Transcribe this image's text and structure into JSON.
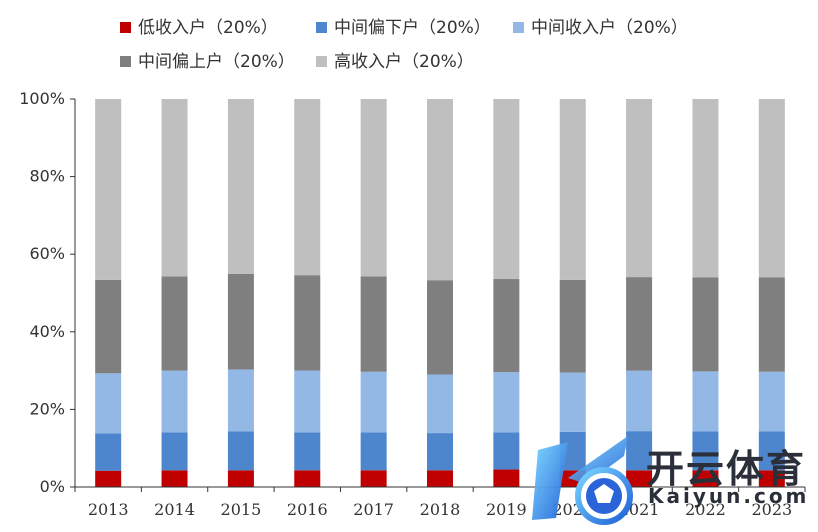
{
  "chart_data": {
    "type": "bar",
    "stacked": true,
    "categories": [
      "2013",
      "2014",
      "2015",
      "2016",
      "2017",
      "2018",
      "2019",
      "2020",
      "2021",
      "2022",
      "2023"
    ],
    "series": [
      {
        "name": "低收入户（20%）",
        "color": "#c00000",
        "values": [
          4.2,
          4.3,
          4.3,
          4.3,
          4.3,
          4.3,
          4.5,
          4.3,
          4.3,
          4.3,
          4.3
        ]
      },
      {
        "name": "中间偏下户（20%）",
        "color": "#4d86cc",
        "values": [
          9.6,
          9.8,
          10.0,
          9.8,
          9.8,
          9.6,
          9.6,
          9.9,
          10.1,
          10.0,
          10.0
        ]
      },
      {
        "name": "中间收入户（20%）",
        "color": "#93b8e6",
        "values": [
          15.5,
          15.9,
          16.0,
          15.9,
          15.6,
          15.1,
          15.5,
          15.3,
          15.6,
          15.5,
          15.4
        ]
      },
      {
        "name": "中间偏上户（20%）",
        "color": "#7f7f7f",
        "values": [
          24.1,
          24.3,
          24.6,
          24.6,
          24.6,
          24.3,
          24.0,
          23.9,
          24.1,
          24.2,
          24.3
        ]
      },
      {
        "name": "高收入户（20%）",
        "color": "#bfbfbf",
        "values": [
          46.6,
          45.7,
          45.1,
          45.4,
          45.7,
          46.7,
          46.4,
          46.6,
          45.9,
          46.0,
          46.0
        ]
      }
    ],
    "yticks": [
      "0%",
      "20%",
      "40%",
      "60%",
      "80%",
      "100%"
    ],
    "ylim": [
      0,
      100
    ],
    "xlabel": "",
    "ylabel": "",
    "grid": false,
    "legend_position": "top"
  },
  "watermark": {
    "brand": "开云体育",
    "url": "Kaiyun.com",
    "logo_icon": "kaiyun-logo-icon"
  }
}
